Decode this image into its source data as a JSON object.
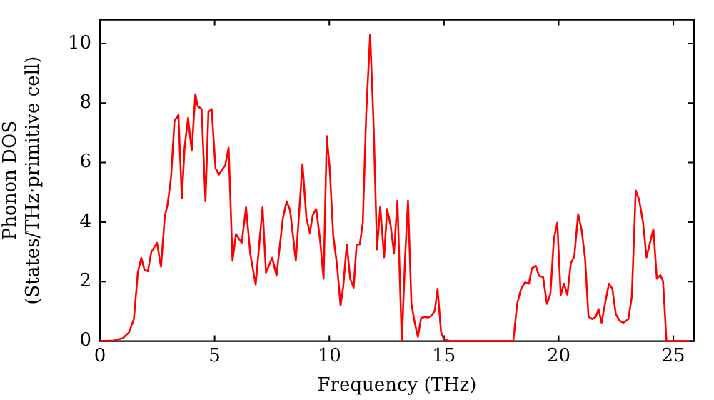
{
  "chart_data": {
    "type": "line",
    "xlabel": "Frequency (THz)",
    "ylabel": "Phonon DOS\n(States/THz·primitive cell)",
    "xlim": [
      0,
      25.9
    ],
    "ylim": [
      0,
      10.8
    ],
    "xticks": [
      0,
      5,
      10,
      15,
      20,
      25
    ],
    "yticks": [
      0,
      2,
      4,
      6,
      8,
      10
    ],
    "grid": false,
    "legend": false,
    "marker": "none",
    "line_style": "solid",
    "series": [
      {
        "color": "#ff0000",
        "x": [
          0,
          0.6,
          1.0,
          1.27,
          1.48,
          1.65,
          1.8,
          1.94,
          2.09,
          2.24,
          2.49,
          2.66,
          2.83,
          2.95,
          3.1,
          3.25,
          3.42,
          3.57,
          3.69,
          3.84,
          4.0,
          4.16,
          4.26,
          4.43,
          4.6,
          4.73,
          4.87,
          5.04,
          5.19,
          5.36,
          5.46,
          5.61,
          5.78,
          5.93,
          6.18,
          6.37,
          6.56,
          6.79,
          7.09,
          7.24,
          7.51,
          7.7,
          7.97,
          8.14,
          8.29,
          8.54,
          8.83,
          9.0,
          9.15,
          9.28,
          9.43,
          9.6,
          9.75,
          9.89,
          10.02,
          10.17,
          10.34,
          10.49,
          10.61,
          10.76,
          10.91,
          11.06,
          11.19,
          11.33,
          11.46,
          11.61,
          11.78,
          11.93,
          12.08,
          12.22,
          12.39,
          12.52,
          12.67,
          12.82,
          12.97,
          13.16,
          13.31,
          13.43,
          13.58,
          13.71,
          13.86,
          14.0,
          14.15,
          14.3,
          14.45,
          14.6,
          14.72,
          14.87,
          15.0,
          15.25,
          18.02,
          18.19,
          18.36,
          18.53,
          18.7,
          18.83,
          19.0,
          19.15,
          19.32,
          19.49,
          19.64,
          19.79,
          19.94,
          20.09,
          20.23,
          20.38,
          20.53,
          20.68,
          20.85,
          21.0,
          21.15,
          21.3,
          21.47,
          21.62,
          21.74,
          21.87,
          22.02,
          22.19,
          22.34,
          22.49,
          22.66,
          22.83,
          23.04,
          23.19,
          23.36,
          23.51,
          23.68,
          23.83,
          23.98,
          24.13,
          24.28,
          24.43,
          24.55,
          24.7,
          25.7
        ],
        "values": [
          0,
          0.02,
          0.1,
          0.3,
          0.75,
          2.3,
          2.8,
          2.4,
          2.35,
          3.0,
          3.3,
          2.5,
          4.2,
          4.6,
          5.5,
          7.4,
          7.6,
          4.8,
          6.5,
          7.5,
          6.4,
          8.3,
          7.9,
          7.8,
          4.7,
          7.7,
          7.8,
          5.8,
          5.6,
          5.8,
          5.9,
          6.5,
          2.7,
          3.6,
          3.3,
          4.5,
          2.9,
          1.9,
          4.5,
          2.3,
          2.8,
          2.2,
          4.1,
          4.7,
          4.4,
          2.7,
          5.95,
          4.15,
          3.64,
          4.24,
          4.44,
          3.38,
          2.1,
          6.89,
          5.78,
          3.56,
          2.53,
          1.2,
          1.85,
          3.25,
          2.1,
          1.8,
          3.25,
          3.25,
          3.98,
          7.66,
          10.3,
          7.3,
          3.08,
          4.5,
          2.82,
          4.44,
          3.9,
          2.96,
          4.72,
          0,
          2.9,
          4.72,
          1.25,
          0.68,
          0.14,
          0.77,
          0.82,
          0.79,
          0.85,
          1.03,
          1.76,
          0.31,
          0.05,
          0,
          0,
          1.25,
          1.76,
          1.97,
          1.93,
          2.44,
          2.53,
          2.19,
          2.15,
          1.25,
          1.59,
          3.42,
          3.98,
          1.54,
          1.93,
          1.56,
          2.62,
          2.84,
          4.27,
          3.73,
          2.79,
          0.82,
          0.74,
          0.82,
          1.08,
          0.62,
          1.25,
          1.93,
          1.76,
          0.91,
          0.68,
          0.62,
          0.74,
          1.5,
          5.06,
          4.75,
          3.98,
          2.82,
          3.3,
          3.76,
          2.1,
          2.22,
          2.02,
          0,
          0
        ]
      }
    ]
  }
}
